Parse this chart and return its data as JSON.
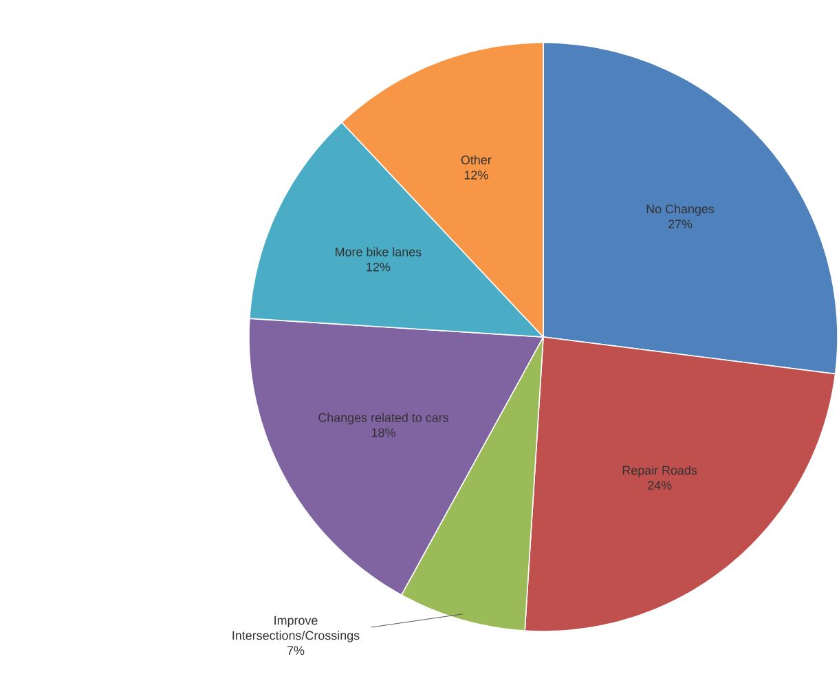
{
  "chart_data": {
    "type": "pie",
    "categories": [
      "No Changes",
      "Repair Roads",
      "Improve Intersections/Crossings",
      "Changes related to cars",
      "More bike lanes",
      "Other"
    ],
    "values": [
      27,
      24,
      7,
      18,
      12,
      12
    ],
    "value_labels": [
      "27%",
      "24%",
      "7%",
      "18%",
      "12%",
      "12%"
    ],
    "colors": [
      "#4f81bd",
      "#c0504d",
      "#9bbb59",
      "#8064a2",
      "#4bacc6",
      "#f79646"
    ]
  }
}
